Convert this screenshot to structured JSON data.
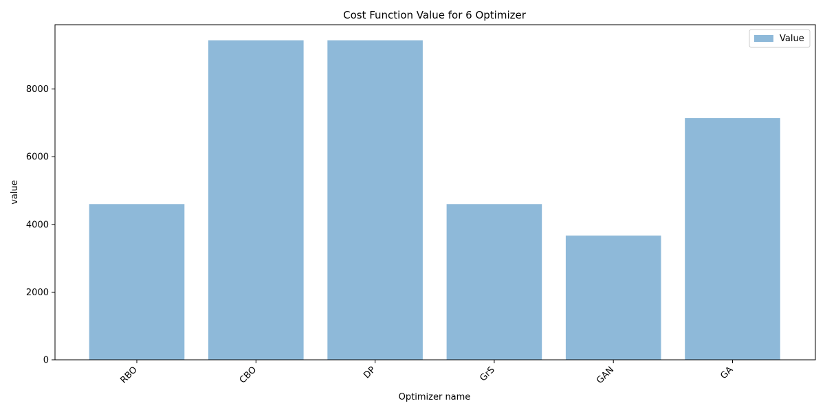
{
  "chart_data": {
    "type": "bar",
    "title": "Cost Function Value for 6 Optimizer",
    "xlabel": "Optimizer name",
    "ylabel": "value",
    "categories": [
      "RBO",
      "CBO",
      "DP",
      "GrS",
      "GAN",
      "GA"
    ],
    "series": [
      {
        "name": "Value",
        "values": [
          4600,
          9440,
          9440,
          4600,
          3670,
          7140
        ]
      }
    ],
    "ylim": [
      0,
      9900
    ],
    "yticks": [
      0,
      2000,
      4000,
      6000,
      8000
    ],
    "ytick_labels": [
      "0",
      "2000",
      "4000",
      "6000",
      "8000"
    ],
    "grid": false,
    "legend_position": "top-right",
    "bar_color": "#8eb9d9",
    "bar_opacity": 1
  }
}
